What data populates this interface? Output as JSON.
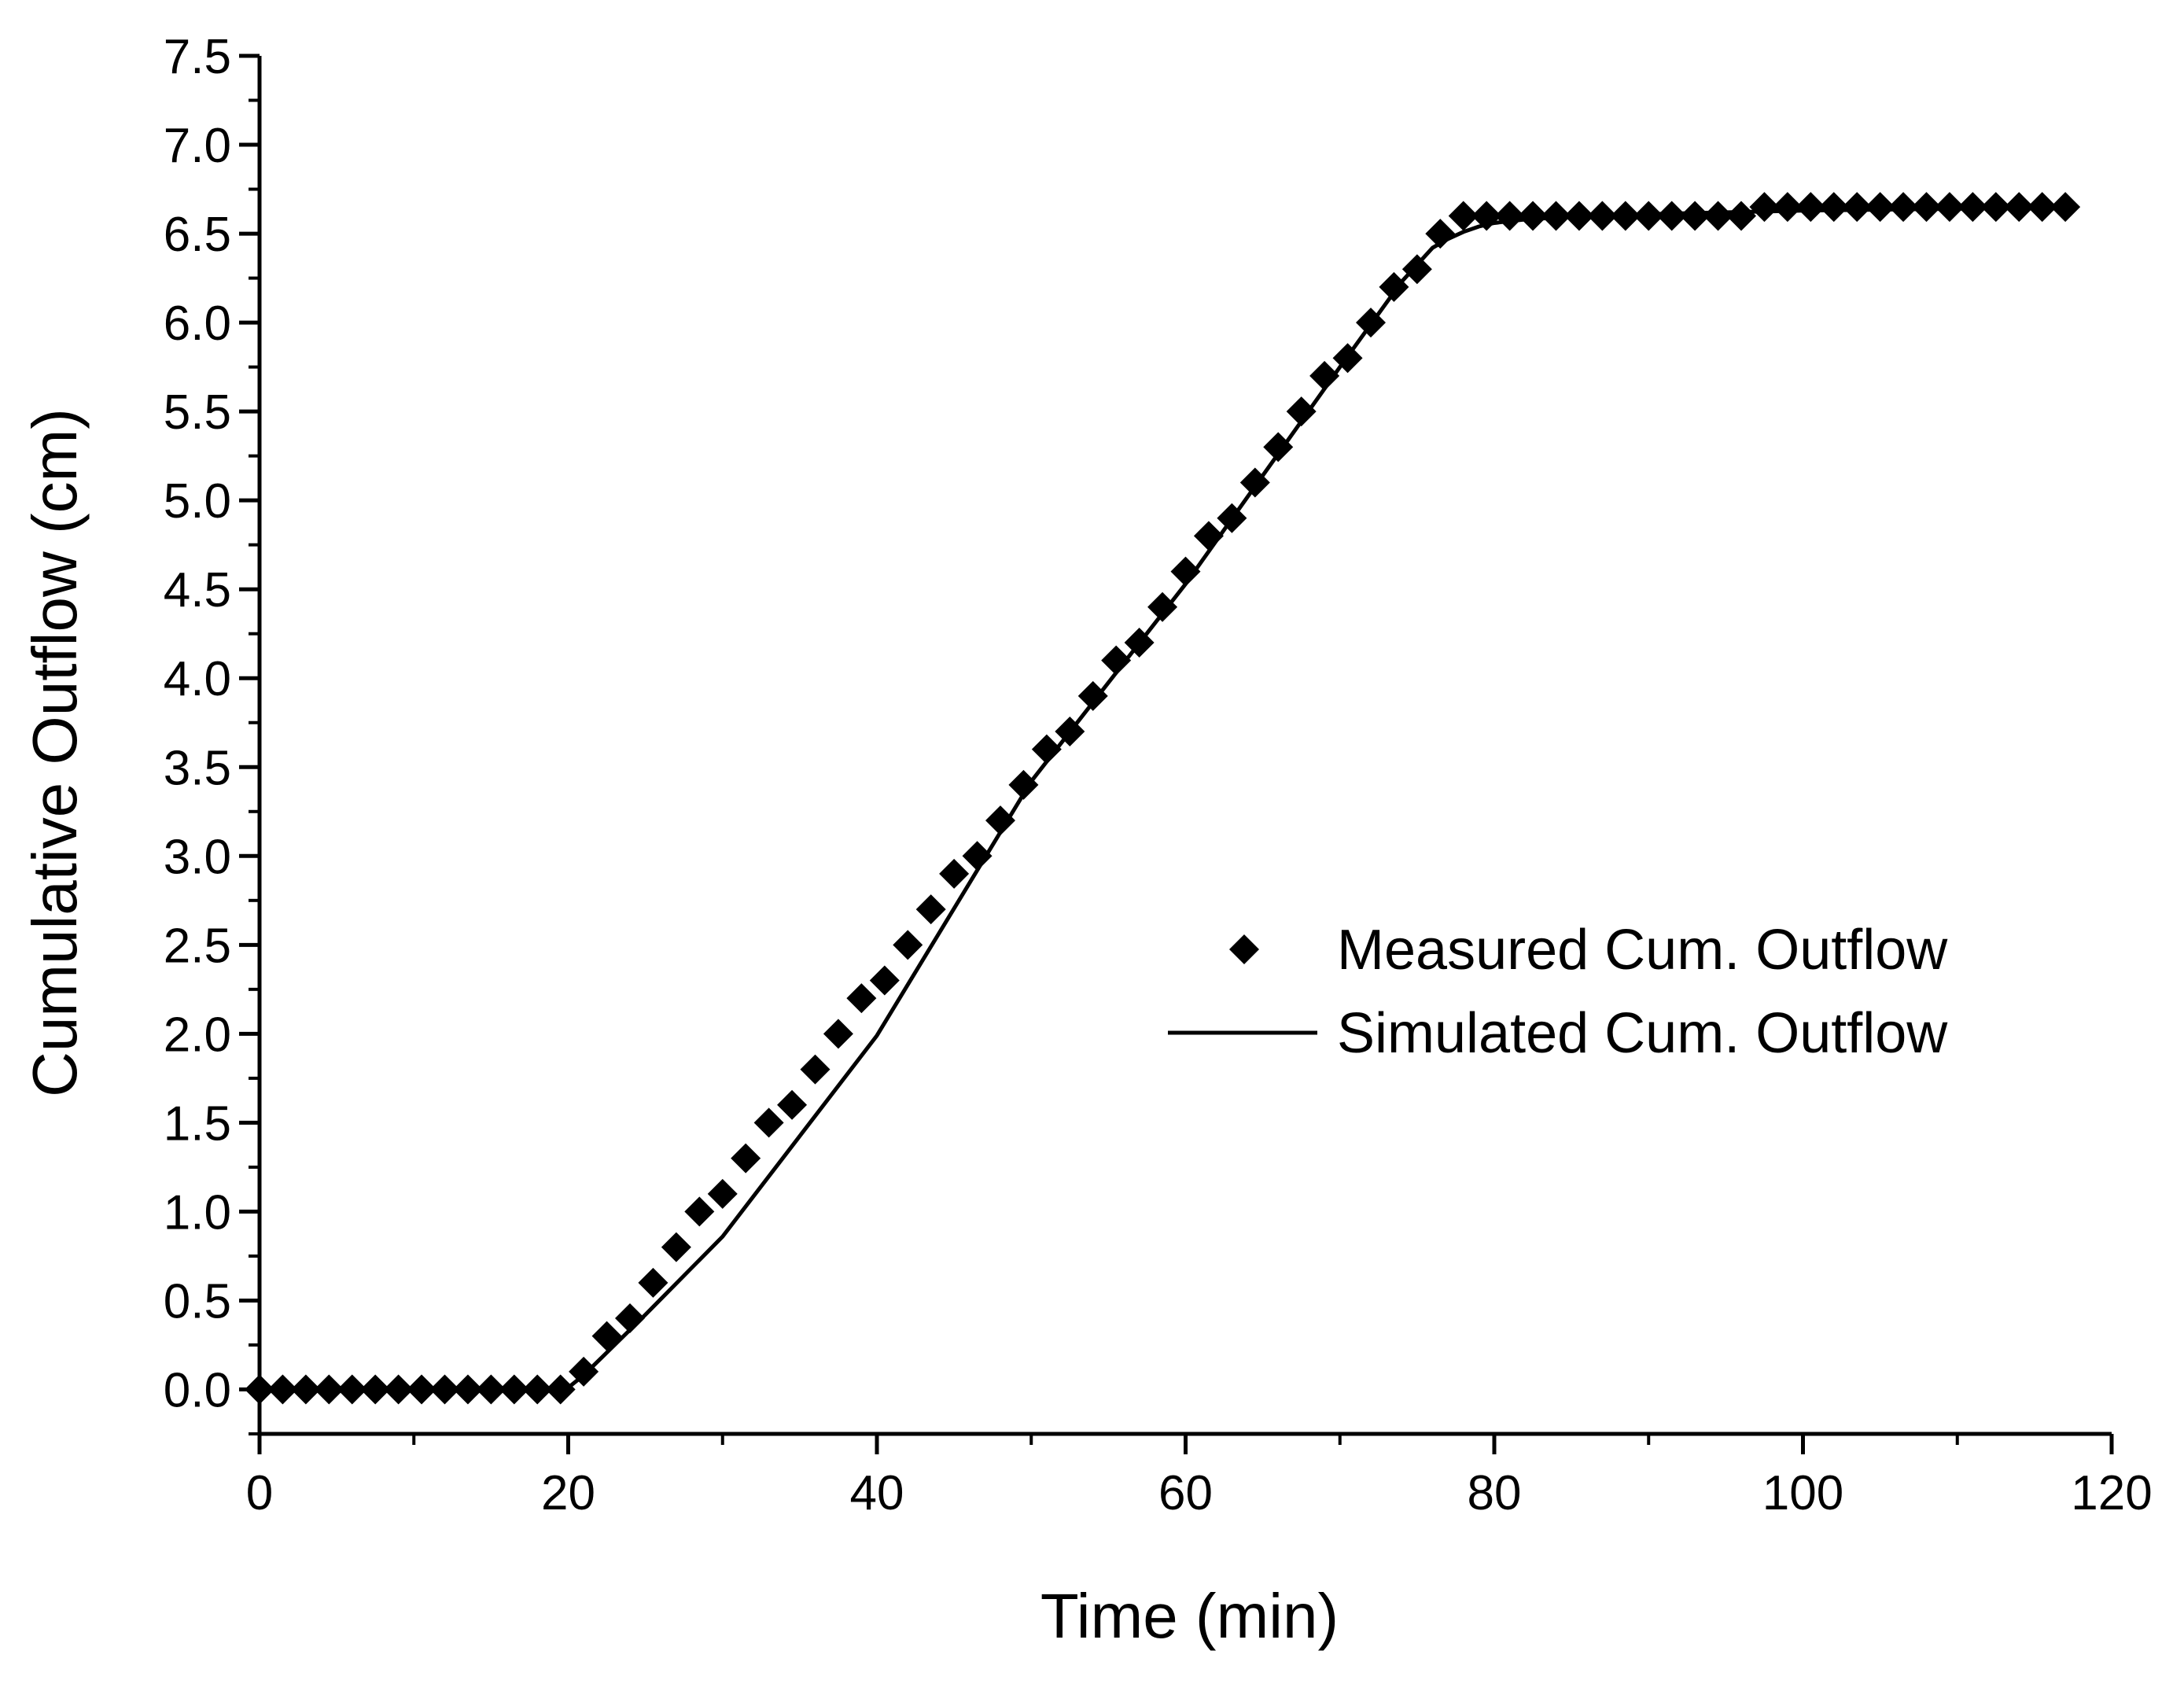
{
  "chart_data": {
    "type": "scatter",
    "title": "",
    "xlabel": "Time (min)",
    "ylabel": "Cumulative Outflow (cm)",
    "xlim": [
      0,
      120
    ],
    "ylim": [
      -0.25,
      7.5
    ],
    "x_ticks": [
      0,
      20,
      40,
      60,
      80,
      100,
      120
    ],
    "x_tick_labels": [
      "0",
      "20",
      "40",
      "60",
      "80",
      "100",
      "120"
    ],
    "y_ticks": [
      0.0,
      0.5,
      1.0,
      1.5,
      2.0,
      2.5,
      3.0,
      3.5,
      4.0,
      4.5,
      5.0,
      5.5,
      6.0,
      6.5,
      7.0,
      7.5
    ],
    "y_tick_labels": [
      "0.0",
      "0.5",
      "1.0",
      "1.5",
      "2.0",
      "2.5",
      "3.0",
      "3.5",
      "4.0",
      "4.5",
      "5.0",
      "5.5",
      "6.0",
      "6.5",
      "7.0",
      "7.5"
    ],
    "grid": false,
    "legend_position": "center-right",
    "series": [
      {
        "name": "Measured Cum. Outflow",
        "kind": "scatter",
        "marker": "diamond",
        "color": "#000000",
        "x": [
          0,
          1.5,
          3,
          4.5,
          6,
          7.5,
          9,
          10.5,
          12,
          13.5,
          15,
          16.5,
          18,
          19.5,
          21,
          22.5,
          24,
          25.5,
          27,
          28.5,
          30,
          31.5,
          33,
          34.5,
          36,
          37.5,
          39,
          40.5,
          42,
          43.5,
          45,
          46.5,
          48,
          49.5,
          51,
          52.5,
          54,
          55.5,
          57,
          58.5,
          60,
          61.5,
          63,
          64.5,
          66,
          67.5,
          69,
          70.5,
          72,
          73.5,
          75,
          76.5,
          78,
          79.5,
          81,
          82.5,
          84,
          85.5,
          87,
          88.5,
          90,
          91.5,
          93,
          94.5,
          96,
          97.5,
          99,
          100.5,
          102,
          103.5,
          105,
          106.5,
          108,
          109.5,
          111,
          112.5,
          114,
          115.5,
          117
        ],
        "y": [
          0,
          0,
          0,
          0,
          0,
          0,
          0,
          0,
          0,
          0,
          0,
          0,
          0,
          0,
          0.1,
          0.3,
          0.4,
          0.6,
          0.8,
          1.0,
          1.1,
          1.3,
          1.5,
          1.6,
          1.8,
          2.0,
          2.2,
          2.3,
          2.5,
          2.7,
          2.9,
          3.0,
          3.2,
          3.4,
          3.6,
          3.7,
          3.9,
          4.1,
          4.2,
          4.4,
          4.6,
          4.8,
          4.9,
          5.1,
          5.3,
          5.5,
          5.7,
          5.8,
          6.0,
          6.2,
          6.3,
          6.5,
          6.6,
          6.6,
          6.6,
          6.6,
          6.6,
          6.6,
          6.6,
          6.6,
          6.6,
          6.6,
          6.6,
          6.6,
          6.6,
          6.65,
          6.65,
          6.65,
          6.65,
          6.65,
          6.65,
          6.65,
          6.65,
          6.65,
          6.65,
          6.65,
          6.65,
          6.65,
          6.65
        ]
      },
      {
        "name": "Simulated Cum. Outflow",
        "kind": "line",
        "color": "#000000",
        "x": [
          0,
          19.5,
          20,
          21,
          23,
          25,
          30,
          40,
          50,
          60,
          70,
          74,
          76,
          77,
          78,
          79,
          80,
          81,
          82,
          84,
          86,
          90,
          100,
          110,
          117
        ],
        "y": [
          0,
          0,
          0.01,
          0.08,
          0.25,
          0.42,
          0.86,
          1.99,
          3.42,
          4.53,
          5.75,
          6.23,
          6.42,
          6.47,
          6.51,
          6.54,
          6.56,
          6.57,
          6.58,
          6.59,
          6.6,
          6.61,
          6.63,
          6.64,
          6.65
        ]
      }
    ]
  }
}
